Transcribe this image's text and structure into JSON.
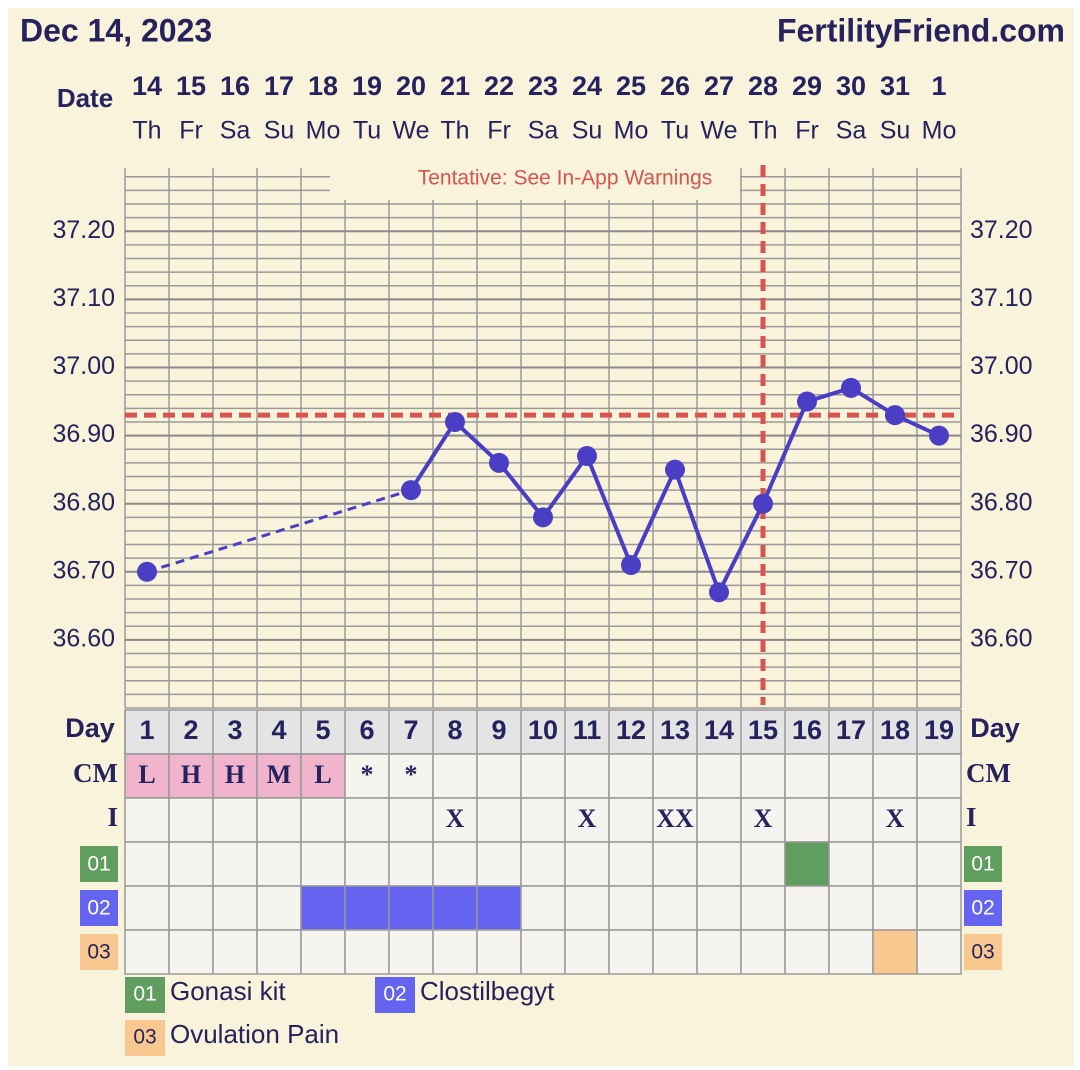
{
  "chart_data": {
    "type": "line",
    "title": "Dec 14, 2023",
    "site": "FertilityFriend.com",
    "x_label": "Date",
    "categories": [
      "14",
      "15",
      "16",
      "17",
      "18",
      "19",
      "20",
      "21",
      "22",
      "23",
      "24",
      "25",
      "26",
      "27",
      "28",
      "29",
      "30",
      "31",
      "1"
    ],
    "weekdays": [
      "Th",
      "Fr",
      "Sa",
      "Su",
      "Mo",
      "Tu",
      "We",
      "Th",
      "Fr",
      "Sa",
      "Su",
      "Mo",
      "Tu",
      "We",
      "Th",
      "Fr",
      "Sa",
      "Su",
      "Mo"
    ],
    "values": [
      36.7,
      null,
      null,
      null,
      null,
      null,
      36.82,
      36.92,
      36.86,
      36.78,
      36.87,
      36.71,
      36.85,
      36.67,
      36.8,
      36.95,
      36.97,
      36.93,
      36.9
    ],
    "color": "#4a3fc4",
    "ylim": [
      36.5,
      37.29
    ],
    "yticks": [
      {
        "value": 36.6,
        "label": "36.60"
      },
      {
        "value": 36.7,
        "label": "36.70"
      },
      {
        "value": 36.8,
        "label": "36.80"
      },
      {
        "value": 36.9,
        "label": "36.90"
      },
      {
        "value": 37.0,
        "label": "37.00"
      },
      {
        "value": 37.1,
        "label": "37.10"
      },
      {
        "value": 37.2,
        "label": "37.20"
      }
    ],
    "grid": true,
    "grid_step": 0.02,
    "coverline": 36.93,
    "ovulation_day": 15,
    "reference_color": "#d9534f",
    "annotation": "Tentative: See In-App Warnings",
    "day_label": "Day",
    "cycle_days": [
      1,
      2,
      3,
      4,
      5,
      6,
      7,
      8,
      9,
      10,
      11,
      12,
      13,
      14,
      15,
      16,
      17,
      18,
      19
    ],
    "rows": [
      {
        "label": "CM",
        "cells": [
          "L",
          "H",
          "H",
          "M",
          "L",
          "*",
          "*",
          null,
          null,
          null,
          null,
          null,
          null,
          null,
          null,
          null,
          null,
          null,
          null
        ],
        "highlight_days": [
          1,
          2,
          3,
          4,
          5
        ],
        "color": "#f0b4cc"
      },
      {
        "label": "I",
        "cells": [
          null,
          null,
          null,
          null,
          null,
          null,
          null,
          "X",
          null,
          null,
          "X",
          null,
          "XX",
          null,
          "X",
          null,
          null,
          "X",
          null
        ]
      },
      {
        "label": "01",
        "name": "Gonasi kit",
        "color": "#5f9e5f",
        "days": [
          16
        ]
      },
      {
        "label": "02",
        "name": "Clostilbegyt",
        "color": "#6464f0",
        "days": [
          5,
          6,
          7,
          8,
          9
        ]
      },
      {
        "label": "03",
        "name": "Ovulation Pain",
        "color": "#f8c890",
        "days": [
          18
        ]
      }
    ]
  }
}
